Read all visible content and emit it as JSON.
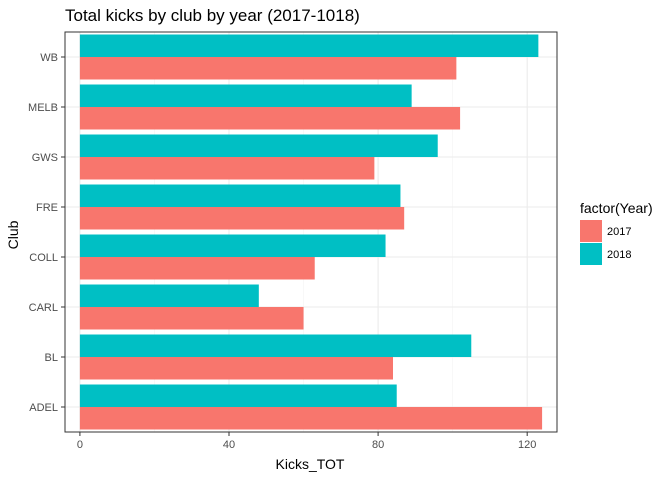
{
  "chart_data": {
    "type": "bar",
    "orientation": "horizontal",
    "title": "Total kicks by club by year (2017-1018)",
    "xlabel": "Kicks_TOT",
    "ylabel": "Club",
    "xlim": [
      -4,
      128
    ],
    "xticks": [
      0,
      40,
      80,
      120
    ],
    "categories": [
      "ADEL",
      "BL",
      "CARL",
      "COLL",
      "FRE",
      "GWS",
      "MELB",
      "WB"
    ],
    "series": [
      {
        "name": "2017",
        "color": "#F8766D",
        "values": [
          124,
          84,
          60,
          63,
          87,
          79,
          102,
          101
        ]
      },
      {
        "name": "2018",
        "color": "#00BFC4",
        "values": [
          85,
          105,
          48,
          82,
          86,
          96,
          89,
          123
        ]
      }
    ],
    "legend": {
      "title": "factor(Year)",
      "position": "right"
    },
    "grid": true,
    "colors": {
      "panel_border": "#333333",
      "grid_major": "#ebebeb",
      "grid_minor": "#f5f5f5",
      "tick_text": "#4d4d4d"
    }
  }
}
